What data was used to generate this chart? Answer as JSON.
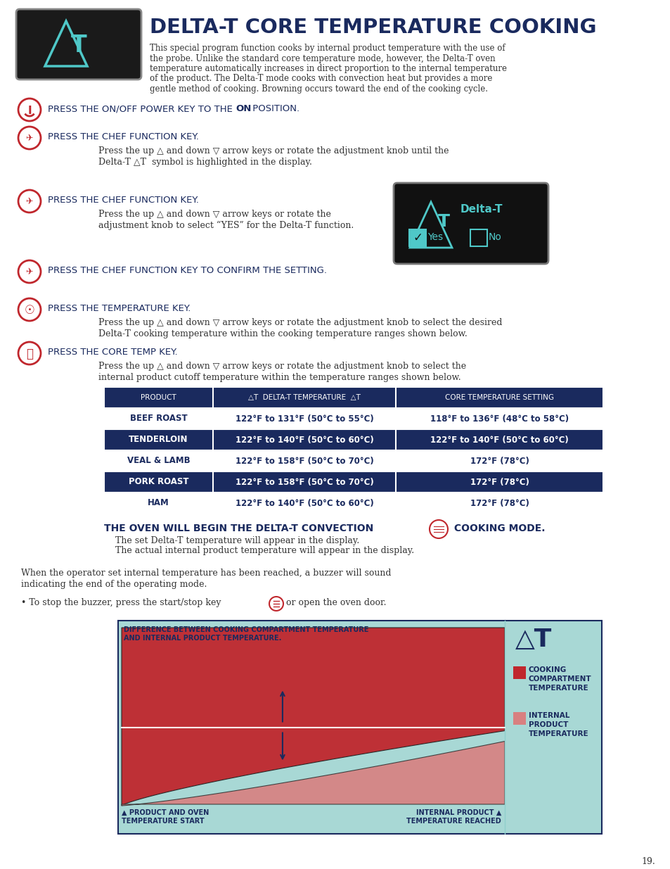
{
  "title": "DELTA-T CORE TEMPERATURE COOKING",
  "title_color": "#1a2a5e",
  "bg_color": "#ffffff",
  "navy": "#1a2a5e",
  "red": "#c0272d",
  "teal_icon": "#4fc8c8",
  "header_text_lines": [
    "This special program function cooks by internal product temperature with the use of",
    "the probe. Unlike the standard core temperature mode, however, the Delta-T oven",
    "temperature automatically increases in direct proportion to the internal temperature",
    "of the product. The Delta-T mode cooks with convection heat but provides a more",
    "gentle method of cooking. Browning occurs toward the end of the cooking cycle."
  ],
  "table_data": [
    [
      "PRODUCT",
      "△T  DELTA-T TEMPERATURE  △T",
      "CORE TEMPERATURE SETTING"
    ],
    [
      "BEEF ROAST",
      "122°F to 131°F (50°C to 55°C)",
      "118°F to 136°F (48°C to 58°C)"
    ],
    [
      "TENDERLOIN",
      "122°F to 140°F (50°C to 60°C)",
      "122°F to 140°F (50°C to 60°C)"
    ],
    [
      "VEAL & LAMB",
      "122°F to 158°F (50°C to 70°C)",
      "172°F (78°C)"
    ],
    [
      "PORK ROAST",
      "122°F to 158°F (50°C to 70°C)",
      "172°F (78°C)"
    ],
    [
      "HAM",
      "122°F to 140°F (50°C to 60°C)",
      "172°F (78°C)"
    ]
  ],
  "page_number": "19.",
  "chart_bg": "#a8d8d5",
  "chart_red_dark": "#c0272d",
  "chart_red_light": "#d88080",
  "chart_legend_bg": "#b8e0de"
}
